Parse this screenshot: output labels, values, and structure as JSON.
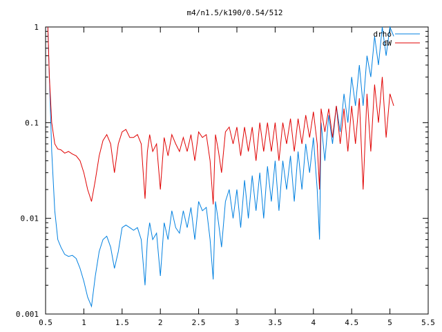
{
  "chart_data": {
    "type": "line",
    "title": "m4/n1.5/k190/0.54/512",
    "xlabel": "",
    "ylabel": "",
    "xlim": [
      0.5,
      5.5
    ],
    "ylim": [
      0.001,
      1
    ],
    "yscale": "log",
    "grid": false,
    "legend_position": "top-right",
    "x_ticks": [
      0.5,
      1,
      1.5,
      2,
      2.5,
      3,
      3.5,
      4,
      4.5,
      5,
      5.5
    ],
    "x_tick_labels": [
      "0.5",
      "1",
      "1.5",
      "2",
      "2.5",
      "3",
      "3.5",
      "4",
      "4.5",
      "5",
      "5.5"
    ],
    "y_ticks": [
      0.001,
      0.01,
      0.1,
      1
    ],
    "y_tick_labels": [
      "0.001",
      "0.01",
      "0.1",
      "1"
    ],
    "series": [
      {
        "name": "drho",
        "color": "#0080e0",
        "x": [
          0.53,
          0.55,
          0.58,
          0.62,
          0.66,
          0.7,
          0.75,
          0.8,
          0.85,
          0.9,
          0.95,
          1.0,
          1.05,
          1.1,
          1.15,
          1.2,
          1.25,
          1.3,
          1.35,
          1.4,
          1.45,
          1.5,
          1.55,
          1.6,
          1.65,
          1.7,
          1.75,
          1.8,
          1.83,
          1.86,
          1.9,
          1.95,
          2.0,
          2.05,
          2.1,
          2.15,
          2.2,
          2.25,
          2.3,
          2.35,
          2.4,
          2.45,
          2.5,
          2.55,
          2.6,
          2.65,
          2.69,
          2.72,
          2.76,
          2.8,
          2.85,
          2.9,
          2.95,
          3.0,
          3.05,
          3.1,
          3.15,
          3.2,
          3.25,
          3.3,
          3.35,
          3.4,
          3.45,
          3.5,
          3.55,
          3.6,
          3.65,
          3.7,
          3.75,
          3.8,
          3.85,
          3.9,
          3.95,
          4.0,
          4.05,
          4.08,
          4.1,
          4.15,
          4.2,
          4.25,
          4.3,
          4.35,
          4.4,
          4.45,
          4.5,
          4.55,
          4.6,
          4.65,
          4.7,
          4.75,
          4.8,
          4.85,
          4.9,
          4.95,
          5.0,
          5.05
        ],
        "y": [
          1.0,
          0.3,
          0.05,
          0.012,
          0.006,
          0.005,
          0.0042,
          0.004,
          0.0041,
          0.0038,
          0.003,
          0.0022,
          0.0015,
          0.0012,
          0.0025,
          0.0045,
          0.006,
          0.0065,
          0.005,
          0.003,
          0.0045,
          0.008,
          0.0085,
          0.008,
          0.0075,
          0.008,
          0.006,
          0.002,
          0.006,
          0.009,
          0.006,
          0.007,
          0.0025,
          0.009,
          0.006,
          0.012,
          0.008,
          0.007,
          0.012,
          0.008,
          0.013,
          0.006,
          0.015,
          0.012,
          0.013,
          0.006,
          0.0023,
          0.015,
          0.009,
          0.005,
          0.015,
          0.02,
          0.01,
          0.02,
          0.008,
          0.025,
          0.01,
          0.028,
          0.012,
          0.03,
          0.01,
          0.035,
          0.015,
          0.04,
          0.012,
          0.04,
          0.02,
          0.045,
          0.015,
          0.05,
          0.02,
          0.06,
          0.03,
          0.07,
          0.02,
          0.006,
          0.1,
          0.04,
          0.12,
          0.06,
          0.15,
          0.08,
          0.2,
          0.1,
          0.3,
          0.15,
          0.4,
          0.15,
          0.5,
          0.3,
          0.8,
          0.4,
          1.0,
          0.5,
          1.0,
          0.8
        ]
      },
      {
        "name": "dW",
        "color": "#e00000",
        "x": [
          0.53,
          0.55,
          0.58,
          0.62,
          0.66,
          0.7,
          0.75,
          0.8,
          0.85,
          0.9,
          0.95,
          1.0,
          1.05,
          1.1,
          1.15,
          1.2,
          1.25,
          1.3,
          1.35,
          1.4,
          1.45,
          1.5,
          1.55,
          1.6,
          1.65,
          1.7,
          1.75,
          1.8,
          1.83,
          1.86,
          1.9,
          1.95,
          2.0,
          2.05,
          2.1,
          2.15,
          2.2,
          2.25,
          2.3,
          2.35,
          2.4,
          2.45,
          2.5,
          2.55,
          2.6,
          2.65,
          2.69,
          2.72,
          2.76,
          2.8,
          2.85,
          2.9,
          2.95,
          3.0,
          3.05,
          3.1,
          3.15,
          3.2,
          3.25,
          3.3,
          3.35,
          3.4,
          3.45,
          3.5,
          3.55,
          3.6,
          3.65,
          3.7,
          3.75,
          3.8,
          3.85,
          3.9,
          3.95,
          4.0,
          4.05,
          4.08,
          4.1,
          4.15,
          4.2,
          4.25,
          4.3,
          4.35,
          4.4,
          4.45,
          4.5,
          4.55,
          4.6,
          4.65,
          4.7,
          4.75,
          4.8,
          4.85,
          4.9,
          4.95,
          5.0,
          5.05
        ],
        "y": [
          1.0,
          0.3,
          0.1,
          0.06,
          0.053,
          0.052,
          0.048,
          0.05,
          0.047,
          0.045,
          0.04,
          0.03,
          0.02,
          0.015,
          0.025,
          0.045,
          0.065,
          0.075,
          0.06,
          0.03,
          0.06,
          0.08,
          0.085,
          0.07,
          0.07,
          0.075,
          0.06,
          0.016,
          0.05,
          0.075,
          0.05,
          0.06,
          0.02,
          0.07,
          0.045,
          0.075,
          0.06,
          0.05,
          0.07,
          0.05,
          0.075,
          0.04,
          0.08,
          0.07,
          0.075,
          0.04,
          0.014,
          0.075,
          0.05,
          0.03,
          0.08,
          0.09,
          0.06,
          0.09,
          0.045,
          0.09,
          0.05,
          0.09,
          0.04,
          0.1,
          0.05,
          0.1,
          0.05,
          0.1,
          0.04,
          0.1,
          0.06,
          0.11,
          0.05,
          0.11,
          0.06,
          0.12,
          0.07,
          0.13,
          0.06,
          0.02,
          0.14,
          0.08,
          0.14,
          0.07,
          0.15,
          0.06,
          0.14,
          0.05,
          0.15,
          0.06,
          0.18,
          0.02,
          0.2,
          0.05,
          0.25,
          0.1,
          0.3,
          0.07,
          0.2,
          0.15
        ]
      }
    ]
  }
}
